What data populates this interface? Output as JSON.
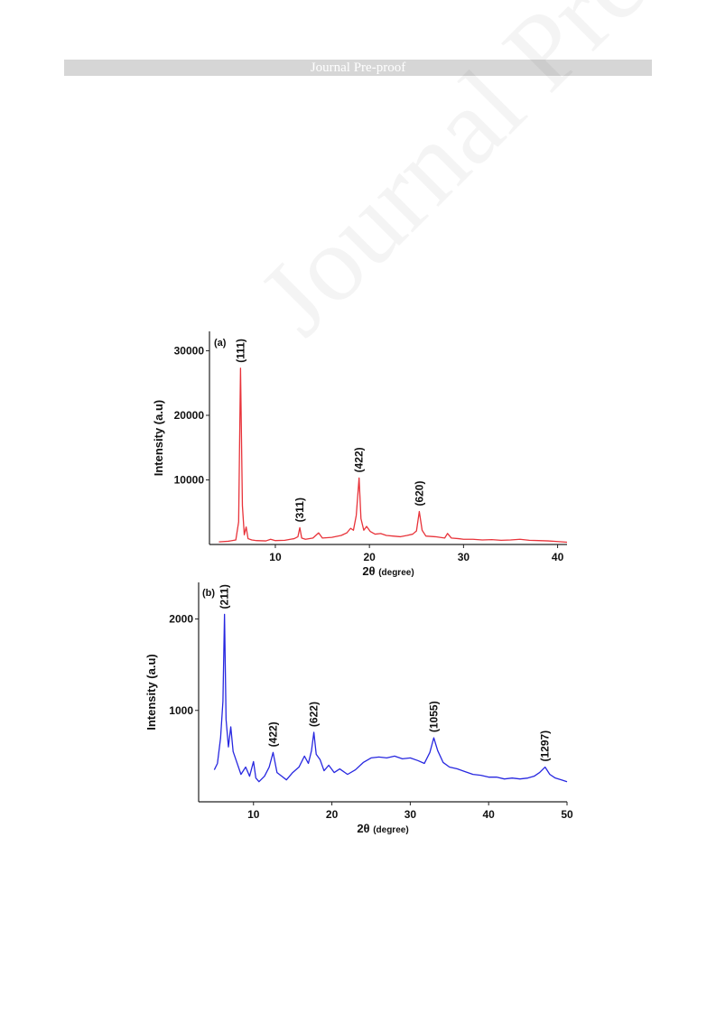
{
  "header": {
    "title": "Journal Pre-proof"
  },
  "watermark": {
    "text": "Journal Pre-proof"
  },
  "chart_data": [
    {
      "type": "line",
      "panel": "(a)",
      "xlabel": "2θ",
      "xlabel_unit": "(degree)",
      "ylabel": "Intensity (a.u)",
      "xlim": [
        3,
        41
      ],
      "ylim": [
        0,
        33000
      ],
      "xticks": [
        10,
        20,
        30,
        40
      ],
      "yticks": [
        10000,
        20000,
        30000
      ],
      "color": "#e8333a",
      "grid": false,
      "legend": "none",
      "peaks": [
        {
          "label": "(111)",
          "x": 6.3,
          "y": 27300
        },
        {
          "label": "(311)",
          "x": 12.6,
          "y": 2600
        },
        {
          "label": "(422)",
          "x": 18.9,
          "y": 10300
        },
        {
          "label": "(620)",
          "x": 25.3,
          "y": 5100
        }
      ],
      "series": [
        {
          "x": [
            4,
            5,
            5.8,
            6.1,
            6.3,
            6.5,
            6.7,
            6.9,
            7.1,
            7.5,
            8,
            9,
            9.5,
            10,
            11,
            11.6,
            12,
            12.4,
            12.6,
            12.8,
            13.2,
            14,
            14.6,
            15,
            16,
            17,
            17.6,
            18,
            18.3,
            18.6,
            18.9,
            19.1,
            19.4,
            19.7,
            20.1,
            20.6,
            21.2,
            21.8,
            22.5,
            23.3,
            24,
            24.6,
            25,
            25.3,
            25.6,
            26,
            27,
            28,
            28.3,
            28.7,
            29.5,
            30,
            31,
            32,
            33,
            34,
            35,
            36,
            37,
            38,
            39,
            40,
            41
          ],
          "y": [
            400,
            500,
            700,
            3500,
            27300,
            6000,
            1500,
            2700,
            900,
            700,
            600,
            550,
            800,
            600,
            650,
            800,
            900,
            1200,
            2600,
            1000,
            800,
            1000,
            1800,
            1000,
            1100,
            1400,
            1800,
            2500,
            2200,
            4500,
            10300,
            4000,
            2200,
            2800,
            2000,
            1600,
            1700,
            1400,
            1300,
            1200,
            1400,
            1600,
            2100,
            5100,
            2200,
            1300,
            1200,
            1000,
            1700,
            1000,
            900,
            800,
            800,
            700,
            750,
            650,
            700,
            800,
            650,
            600,
            550,
            450,
            350
          ]
        }
      ]
    },
    {
      "type": "line",
      "panel": "(b)",
      "xlabel": "2θ",
      "xlabel_unit": "(degree)",
      "ylabel": "Intensity (a.u)",
      "xlim": [
        3,
        50
      ],
      "ylim": [
        0,
        2400
      ],
      "xticks": [
        10,
        20,
        30,
        40,
        50
      ],
      "yticks": [
        1000,
        2000
      ],
      "color": "#2727e0",
      "grid": false,
      "legend": "none",
      "peaks": [
        {
          "label": "(211)",
          "x": 6.3,
          "y": 2050
        },
        {
          "label": "(422)",
          "x": 12.5,
          "y": 540
        },
        {
          "label": "(622)",
          "x": 17.7,
          "y": 760
        },
        {
          "label": "(1055)",
          "x": 33,
          "y": 700
        },
        {
          "label": "(1297)",
          "x": 47.2,
          "y": 380
        }
      ],
      "series": [
        {
          "x": [
            5,
            5.4,
            5.8,
            6.1,
            6.3,
            6.5,
            6.8,
            7.1,
            7.4,
            7.8,
            8.4,
            9,
            9.5,
            10,
            10.3,
            10.7,
            11.4,
            12,
            12.5,
            13,
            13.6,
            14.2,
            15,
            15.8,
            16.5,
            17,
            17.4,
            17.7,
            18,
            18.5,
            19,
            19.6,
            20.3,
            21,
            22,
            23,
            24,
            25,
            26,
            27,
            28,
            29,
            30,
            31,
            31.8,
            32.5,
            33,
            33.5,
            34.2,
            35,
            36,
            37,
            38,
            39,
            40,
            41,
            42,
            43,
            44,
            45,
            45.8,
            46.5,
            47.2,
            47.8,
            48.5,
            49.3,
            50
          ],
          "y": [
            350,
            420,
            700,
            1100,
            2050,
            900,
            600,
            820,
            550,
            450,
            300,
            380,
            280,
            440,
            260,
            220,
            280,
            380,
            540,
            320,
            280,
            240,
            320,
            380,
            500,
            420,
            560,
            760,
            520,
            460,
            340,
            400,
            320,
            360,
            300,
            350,
            430,
            480,
            490,
            480,
            500,
            470,
            480,
            450,
            420,
            540,
            700,
            560,
            430,
            380,
            360,
            330,
            300,
            290,
            270,
            270,
            250,
            260,
            250,
            260,
            280,
            320,
            380,
            300,
            260,
            240,
            220
          ]
        }
      ]
    }
  ]
}
